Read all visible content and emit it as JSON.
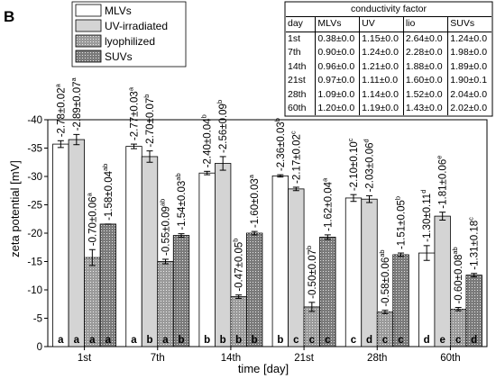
{
  "panel_label": "B",
  "chart_data": {
    "type": "bar",
    "xlabel": "time [day]",
    "ylabel": "zeta potential [mV]",
    "ylim": [
      0,
      -40
    ],
    "yticks": [
      0,
      -5,
      -10,
      -15,
      -20,
      -25,
      -30,
      -35,
      -40
    ],
    "categories": [
      "1st",
      "7th",
      "14th",
      "21st",
      "28th",
      "60th"
    ],
    "legend_position": "top-left",
    "series": [
      {
        "name": "MLVs",
        "fill": "#ffffff",
        "pattern": "none",
        "values": [
          -35.7,
          -35.3,
          -30.6,
          -30.1,
          -26.2,
          -16.5
        ],
        "errors": [
          0.6,
          0.4,
          0.3,
          0.2,
          0.6,
          1.3
        ],
        "value_labels": [
          "-2.78±0.02",
          "-2.77±0.03",
          "-2.40±0.04",
          "-2.36±0.03",
          "-2.10±0.10",
          "-1.30±0.11"
        ],
        "label_superscripts": [
          "a",
          "a",
          "b",
          "b",
          "c",
          "d"
        ],
        "letters": [
          "a",
          "a",
          "b",
          "b",
          "c",
          "d"
        ]
      },
      {
        "name": "UV-irradiated",
        "fill": "#d4d4d4",
        "pattern": "none",
        "values": [
          -36.5,
          -33.5,
          -32.3,
          -27.8,
          -26.0,
          -23.0
        ],
        "errors": [
          0.9,
          1.0,
          1.2,
          0.3,
          0.6,
          0.7
        ],
        "value_labels": [
          "-2.89±0.07",
          "-2.70±0.07",
          "-2.56±0.09",
          "-2.17±0.02",
          "-2.03±0.06",
          "-1.81±0.06"
        ],
        "label_superscripts": [
          "a",
          "b",
          "b",
          "c",
          "d",
          "e"
        ],
        "letters": [
          "a",
          "b",
          "b",
          "c",
          "d",
          "e"
        ]
      },
      {
        "name": "lyophilized",
        "fill": "#9a9a9a",
        "pattern": "dots",
        "values": [
          -15.7,
          -15.0,
          -8.8,
          -7.0,
          -6.1,
          -6.6
        ],
        "errors": [
          1.4,
          0.4,
          0.3,
          0.8,
          0.3,
          0.3
        ],
        "value_labels": [
          "-0.70±0.06",
          "-0.55±0.09",
          "-0.47±0.05",
          "-0.50±0.07",
          "-0.58±0.06",
          "-0.60±0.08"
        ],
        "label_superscripts": [
          "a",
          "ab",
          "b",
          "b",
          "ab",
          "ab"
        ],
        "letters": [
          "a",
          "a",
          "b",
          "c",
          "c",
          "c"
        ]
      },
      {
        "name": "SUVs",
        "fill": "#7a7a7a",
        "pattern": "dots",
        "values": [
          -21.6,
          -19.6,
          -20.0,
          -19.3,
          -16.2,
          -12.6
        ],
        "errors": [
          0.0,
          0.3,
          0.3,
          0.4,
          0.3,
          0.3
        ],
        "value_labels": [
          "-1.58±0.04",
          "-1.54±0.03",
          "-1.60±0.03",
          "-1.62±0.04",
          "-1.51±0.05",
          "-1.31±0.18"
        ],
        "label_superscripts": [
          "ab",
          "ab",
          "a",
          "a",
          "b",
          "c"
        ],
        "letters": [
          "a",
          "b",
          "b",
          "c",
          "c",
          "d"
        ]
      }
    ]
  },
  "conductivity_table": {
    "title": "conductivity factor",
    "headers": [
      "day",
      "MLVs",
      "UV",
      "lio",
      "SUVs"
    ],
    "rows": [
      [
        "1st",
        "0.38±0.0",
        "1.15±0.0",
        "2.64±0.0",
        "1.24±0.0"
      ],
      [
        "7th",
        "0.90±0.0",
        "1.24±0.0",
        "2.28±0.0",
        "1.98±0.0"
      ],
      [
        "14th",
        "0.96±0.0",
        "1.21±0.0",
        "1.88±0.0",
        "1.89±0.0"
      ],
      [
        "21st",
        "0.97±0.0",
        "1.11±0.0",
        "1.60±0.0",
        "1.90±0.1"
      ],
      [
        "28th",
        "1.09±0.0",
        "1.14±0.0",
        "1.52±0.0",
        "2.04±0.0"
      ],
      [
        "60th",
        "1.20±0.0",
        "1.19±0.0",
        "1.43±0.0",
        "2.02±0.0"
      ]
    ]
  }
}
